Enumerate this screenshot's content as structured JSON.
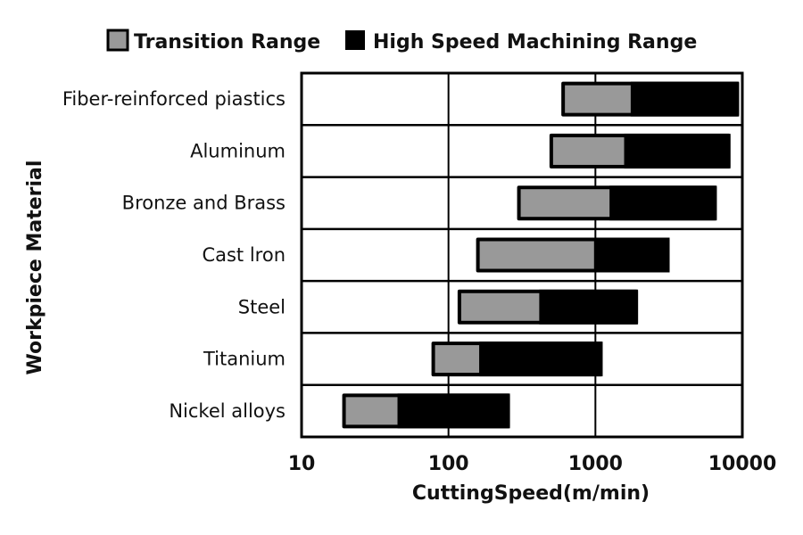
{
  "chart_data": {
    "type": "bar",
    "orientation": "horizontal",
    "stacked_range": true,
    "xlabel": "CuttingSpeed(m/min)",
    "ylabel": "Workpiece Material",
    "xscale": "log",
    "xlim": [
      10,
      10000
    ],
    "xticks": [
      "10",
      "100",
      "1000",
      "10000"
    ],
    "grid": true,
    "legend_position": "top",
    "categories": [
      "Fiber-reinforced piastics",
      "Aluminum",
      "Bronze and Brass",
      "Cast lron",
      "Steel",
      "Titanium",
      "Nickel alloys"
    ],
    "series": [
      {
        "name": "Transition Range",
        "color": "#999999",
        "ranges": [
          [
            620,
            1740
          ],
          [
            515,
            1570
          ],
          [
            310,
            1250
          ],
          [
            163,
            980
          ],
          [
            122,
            415
          ],
          [
            81,
            162
          ],
          [
            20,
            45
          ]
        ]
      },
      {
        "name": "High Speed Machining Range",
        "color": "#000000",
        "ranges": [
          [
            1740,
            9500
          ],
          [
            1570,
            8300
          ],
          [
            1250,
            6700
          ],
          [
            980,
            3200
          ],
          [
            415,
            1950
          ],
          [
            162,
            1120
          ],
          [
            45,
            262
          ]
        ]
      }
    ]
  }
}
